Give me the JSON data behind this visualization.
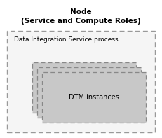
{
  "title_line1": "Node",
  "title_line2": "(Service and Compute Roles)",
  "dis_label": "Data Integration Service process",
  "dtm_label": "DTM instances",
  "bg_color": "#ffffff",
  "outer_facecolor": "#f5f5f5",
  "outer_edgecolor": "#999999",
  "dtm_box_color": "#c8c8c8",
  "dtm_edge_color": "#888888",
  "title_fontsize": 7.5,
  "label_fontsize": 6.5,
  "dtm_fontsize": 7.0
}
